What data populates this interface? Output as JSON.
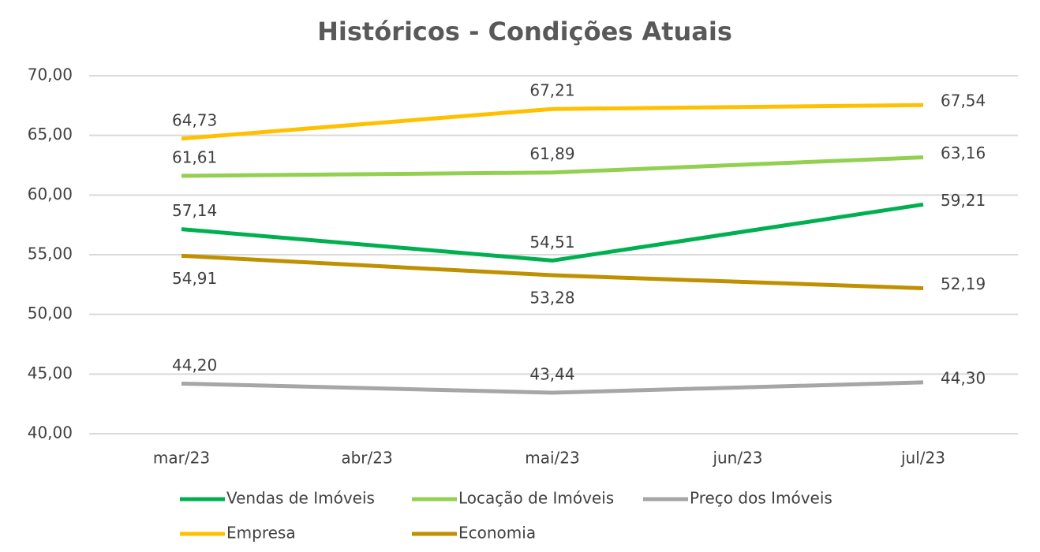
{
  "chart_data": {
    "type": "line",
    "title": "Históricos - Condições Atuais",
    "categories": [
      "mar/23",
      "abr/23",
      "mai/23",
      "jun/23",
      "jul/23"
    ],
    "connect_gaps": true,
    "series": [
      {
        "name": "Vendas de Imóveis",
        "color": "#00b050",
        "values": [
          57.14,
          null,
          54.51,
          null,
          59.21
        ],
        "value_labels": [
          "57,14",
          null,
          "54,51",
          null,
          "59,21"
        ]
      },
      {
        "name": "Locação de Imóveis",
        "color": "#92d050",
        "values": [
          61.61,
          null,
          61.89,
          null,
          63.16
        ],
        "value_labels": [
          "61,61",
          null,
          "61,89",
          null,
          "63,16"
        ]
      },
      {
        "name": "Preço dos Imóveis",
        "color": "#a6a6a6",
        "values": [
          44.2,
          null,
          43.44,
          null,
          44.3
        ],
        "value_labels": [
          "44,20",
          null,
          "43,44",
          null,
          "44,30"
        ]
      },
      {
        "name": "Empresa",
        "color": "#ffc000",
        "values": [
          64.73,
          null,
          67.21,
          null,
          67.54
        ],
        "value_labels": [
          "64,73",
          null,
          "67,21",
          null,
          "67,54"
        ]
      },
      {
        "name": "Economia",
        "color": "#bf9000",
        "values": [
          54.91,
          null,
          53.28,
          null,
          52.19
        ],
        "value_labels": [
          "54,91",
          null,
          "53,28",
          null,
          "52,19"
        ]
      }
    ],
    "ylim": [
      40,
      70
    ],
    "yticks": [
      {
        "value": 40,
        "label": "40,00"
      },
      {
        "value": 45,
        "label": "45,00"
      },
      {
        "value": 50,
        "label": "50,00"
      },
      {
        "value": 55,
        "label": "55,00"
      },
      {
        "value": 60,
        "label": "60,00"
      },
      {
        "value": 65,
        "label": "65,00"
      },
      {
        "value": 70,
        "label": "70,00"
      }
    ],
    "grid": true,
    "legend": "bottom"
  }
}
